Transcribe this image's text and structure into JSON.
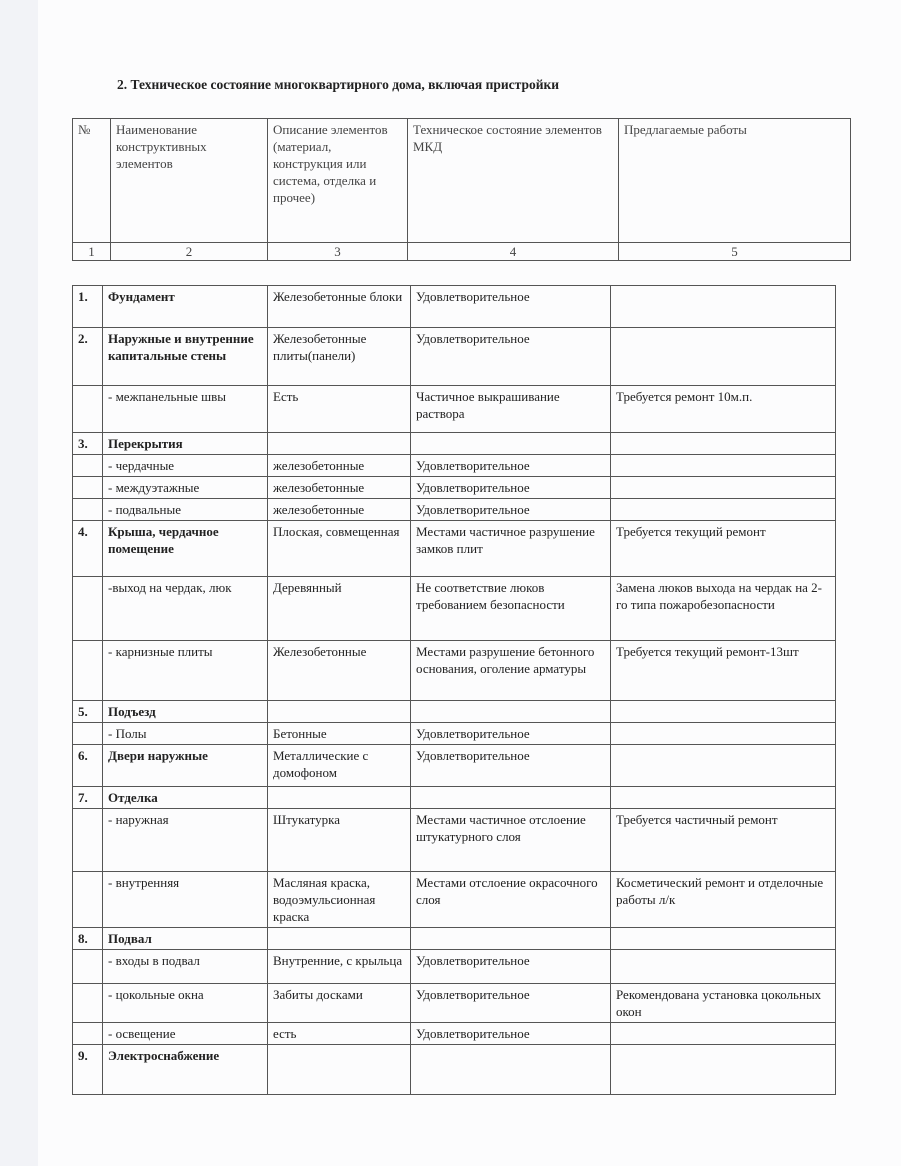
{
  "title": "2. Техническое состояние многоквартирного дома, включая пристройки",
  "header": [
    "№",
    "Наименование конструктивных элементов",
    "Описание элементов (материал, конструкция или система, отделка и прочее)",
    "Техническое состояние элементов МКД",
    "Предлагаемые работы"
  ],
  "column_numbers": [
    "1",
    "2",
    "3",
    "4",
    "5"
  ],
  "rows": [
    {
      "num": "1.",
      "name": "Фундамент",
      "bold": true,
      "desc": "Железобетонные блоки",
      "state": "Удовлетворительное",
      "work": ""
    },
    {
      "num": "2.",
      "name": "Наружные и внутренние капитальные стены",
      "bold": true,
      "desc": "Железобетонные плиты(панели)",
      "state": "Удовлетворительное",
      "work": ""
    },
    {
      "num": "",
      "name": "- межпанельные швы",
      "desc": "Есть",
      "state": "Частичное выкрашивание раствора",
      "work": "Требуется ремонт 10м.п."
    },
    {
      "num": "3.",
      "name": "Перекрытия",
      "bold": true,
      "desc": "",
      "state": "",
      "work": ""
    },
    {
      "num": "",
      "name": "- чердачные",
      "desc": "железобетонные",
      "state": "Удовлетворительное",
      "work": ""
    },
    {
      "num": "",
      "name": "- междуэтажные",
      "desc": "железобетонные",
      "state": "Удовлетворительное",
      "work": ""
    },
    {
      "num": "",
      "name": "- подвальные",
      "desc": "железобетонные",
      "state": "Удовлетворительное",
      "work": ""
    },
    {
      "num": "4.",
      "name": "Крыша, чердачное помещение",
      "bold": true,
      "desc": "Плоская, совмещенная",
      "state": "Местами частичное разрушение замков плит",
      "work": "Требуется текущий ремонт"
    },
    {
      "num": "",
      "name": "-выход на чердак, люк",
      "desc": "Деревянный",
      "state": "Не соответствие люков требованием безопасности",
      "work": "Замена люков выхода на чердак на 2-го типа пожаробезопасности"
    },
    {
      "num": "",
      "name": "- карнизные плиты",
      "desc": "Железобетонные",
      "state": "Местами разрушение бетонного основания, оголение арматуры",
      "work": "Требуется текущий ремонт-13шт"
    },
    {
      "num": "5.",
      "name": "Подъезд",
      "bold": true,
      "desc": "",
      "state": "",
      "work": ""
    },
    {
      "num": "",
      "name": "- Полы",
      "desc": "Бетонные",
      "state": "Удовлетворительное",
      "work": ""
    },
    {
      "num": "6.",
      "name": "Двери наружные",
      "bold": true,
      "desc": "Металлические с домофоном",
      "state": "Удовлетворительное",
      "work": ""
    },
    {
      "num": "7.",
      "name": "Отделка",
      "bold": true,
      "desc": "",
      "state": "",
      "work": ""
    },
    {
      "num": "",
      "name": "- наружная",
      "desc": "Штукатурка",
      "state": "Местами частичное отслоение штукатурного слоя",
      "work": "Требуется частичный ремонт"
    },
    {
      "num": "",
      "name": "- внутренняя",
      "desc": "Масляная краска, водоэмульсионная краска",
      "state": "Местами отслоение окрасочного слоя",
      "work": "Косметический ремонт и отделочные работы л/к"
    },
    {
      "num": "8.",
      "name": "Подвал",
      "bold": true,
      "desc": "",
      "state": "",
      "work": ""
    },
    {
      "num": "",
      "name": "- входы в подвал",
      "desc": "Внутренние, с крыльца",
      "state": "Удовлетворительное",
      "work": ""
    },
    {
      "num": "",
      "name": "- цокольные окна",
      "desc": "Забиты досками",
      "state": "Удовлетворительное",
      "work": "Рекомендована установка цокольных окон"
    },
    {
      "num": "",
      "name": "- освещение",
      "desc": "есть",
      "state": "Удовлетворительное",
      "work": ""
    },
    {
      "num": "9.",
      "name": "Электроснабжение",
      "bold": true,
      "desc": "",
      "state": "",
      "work": ""
    }
  ]
}
